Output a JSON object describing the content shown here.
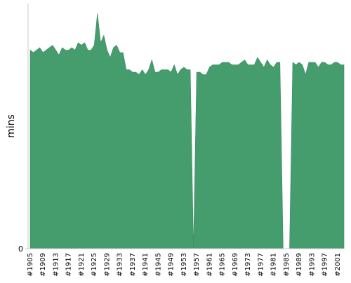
{
  "chart_data": {
    "type": "area",
    "y_label": "mins",
    "color": "#459c6c",
    "categories": [
      "#1905",
      null,
      null,
      null,
      "#1909",
      null,
      null,
      null,
      "#1913",
      null,
      null,
      null,
      "#1917",
      null,
      null,
      null,
      "#1921",
      null,
      null,
      null,
      "#1925",
      null,
      null,
      null,
      "#1929",
      null,
      null,
      null,
      "#1933",
      null,
      null,
      null,
      "#1937",
      null,
      null,
      null,
      "#1941",
      null,
      null,
      null,
      "#1945",
      null,
      null,
      null,
      "#1949",
      null,
      null,
      null,
      "#1953",
      null,
      null,
      null,
      "#1957",
      null,
      null,
      null,
      "#1961",
      null,
      null,
      null,
      "#1965",
      null,
      null,
      null,
      "#1969",
      null,
      null,
      null,
      "#1973",
      null,
      null,
      null,
      "#1977",
      null,
      null,
      null,
      "#1981",
      null,
      null,
      null,
      "#1985",
      null,
      null,
      null,
      "#1989",
      null,
      null,
      null,
      "#1993",
      null,
      null,
      null,
      "#1997",
      null,
      null,
      null,
      "#2001",
      null,
      null
    ],
    "values": [
      81,
      80,
      81,
      82,
      80,
      81,
      82,
      83,
      81,
      79,
      82,
      81,
      81,
      82,
      81,
      84,
      83,
      84,
      81,
      81,
      83,
      96,
      84,
      87,
      81,
      78,
      82,
      83,
      80,
      80,
      73,
      73,
      72,
      72,
      71,
      73,
      71,
      73,
      77,
      72,
      72,
      73,
      73,
      73,
      72,
      75,
      71,
      73,
      74,
      73,
      73,
      0,
      72,
      72,
      71,
      71,
      74,
      75,
      75,
      75,
      76,
      76,
      76,
      75,
      75,
      75,
      76,
      77,
      75,
      75,
      75,
      78,
      76,
      74,
      77,
      75,
      74,
      76,
      76,
      0,
      0,
      0,
      76,
      75,
      76,
      75,
      71,
      76,
      76,
      76,
      74,
      76,
      76,
      75,
      75,
      76,
      76,
      75,
      75
    ],
    "ylim": [
      0,
      100
    ],
    "yticks": [
      0
    ]
  }
}
